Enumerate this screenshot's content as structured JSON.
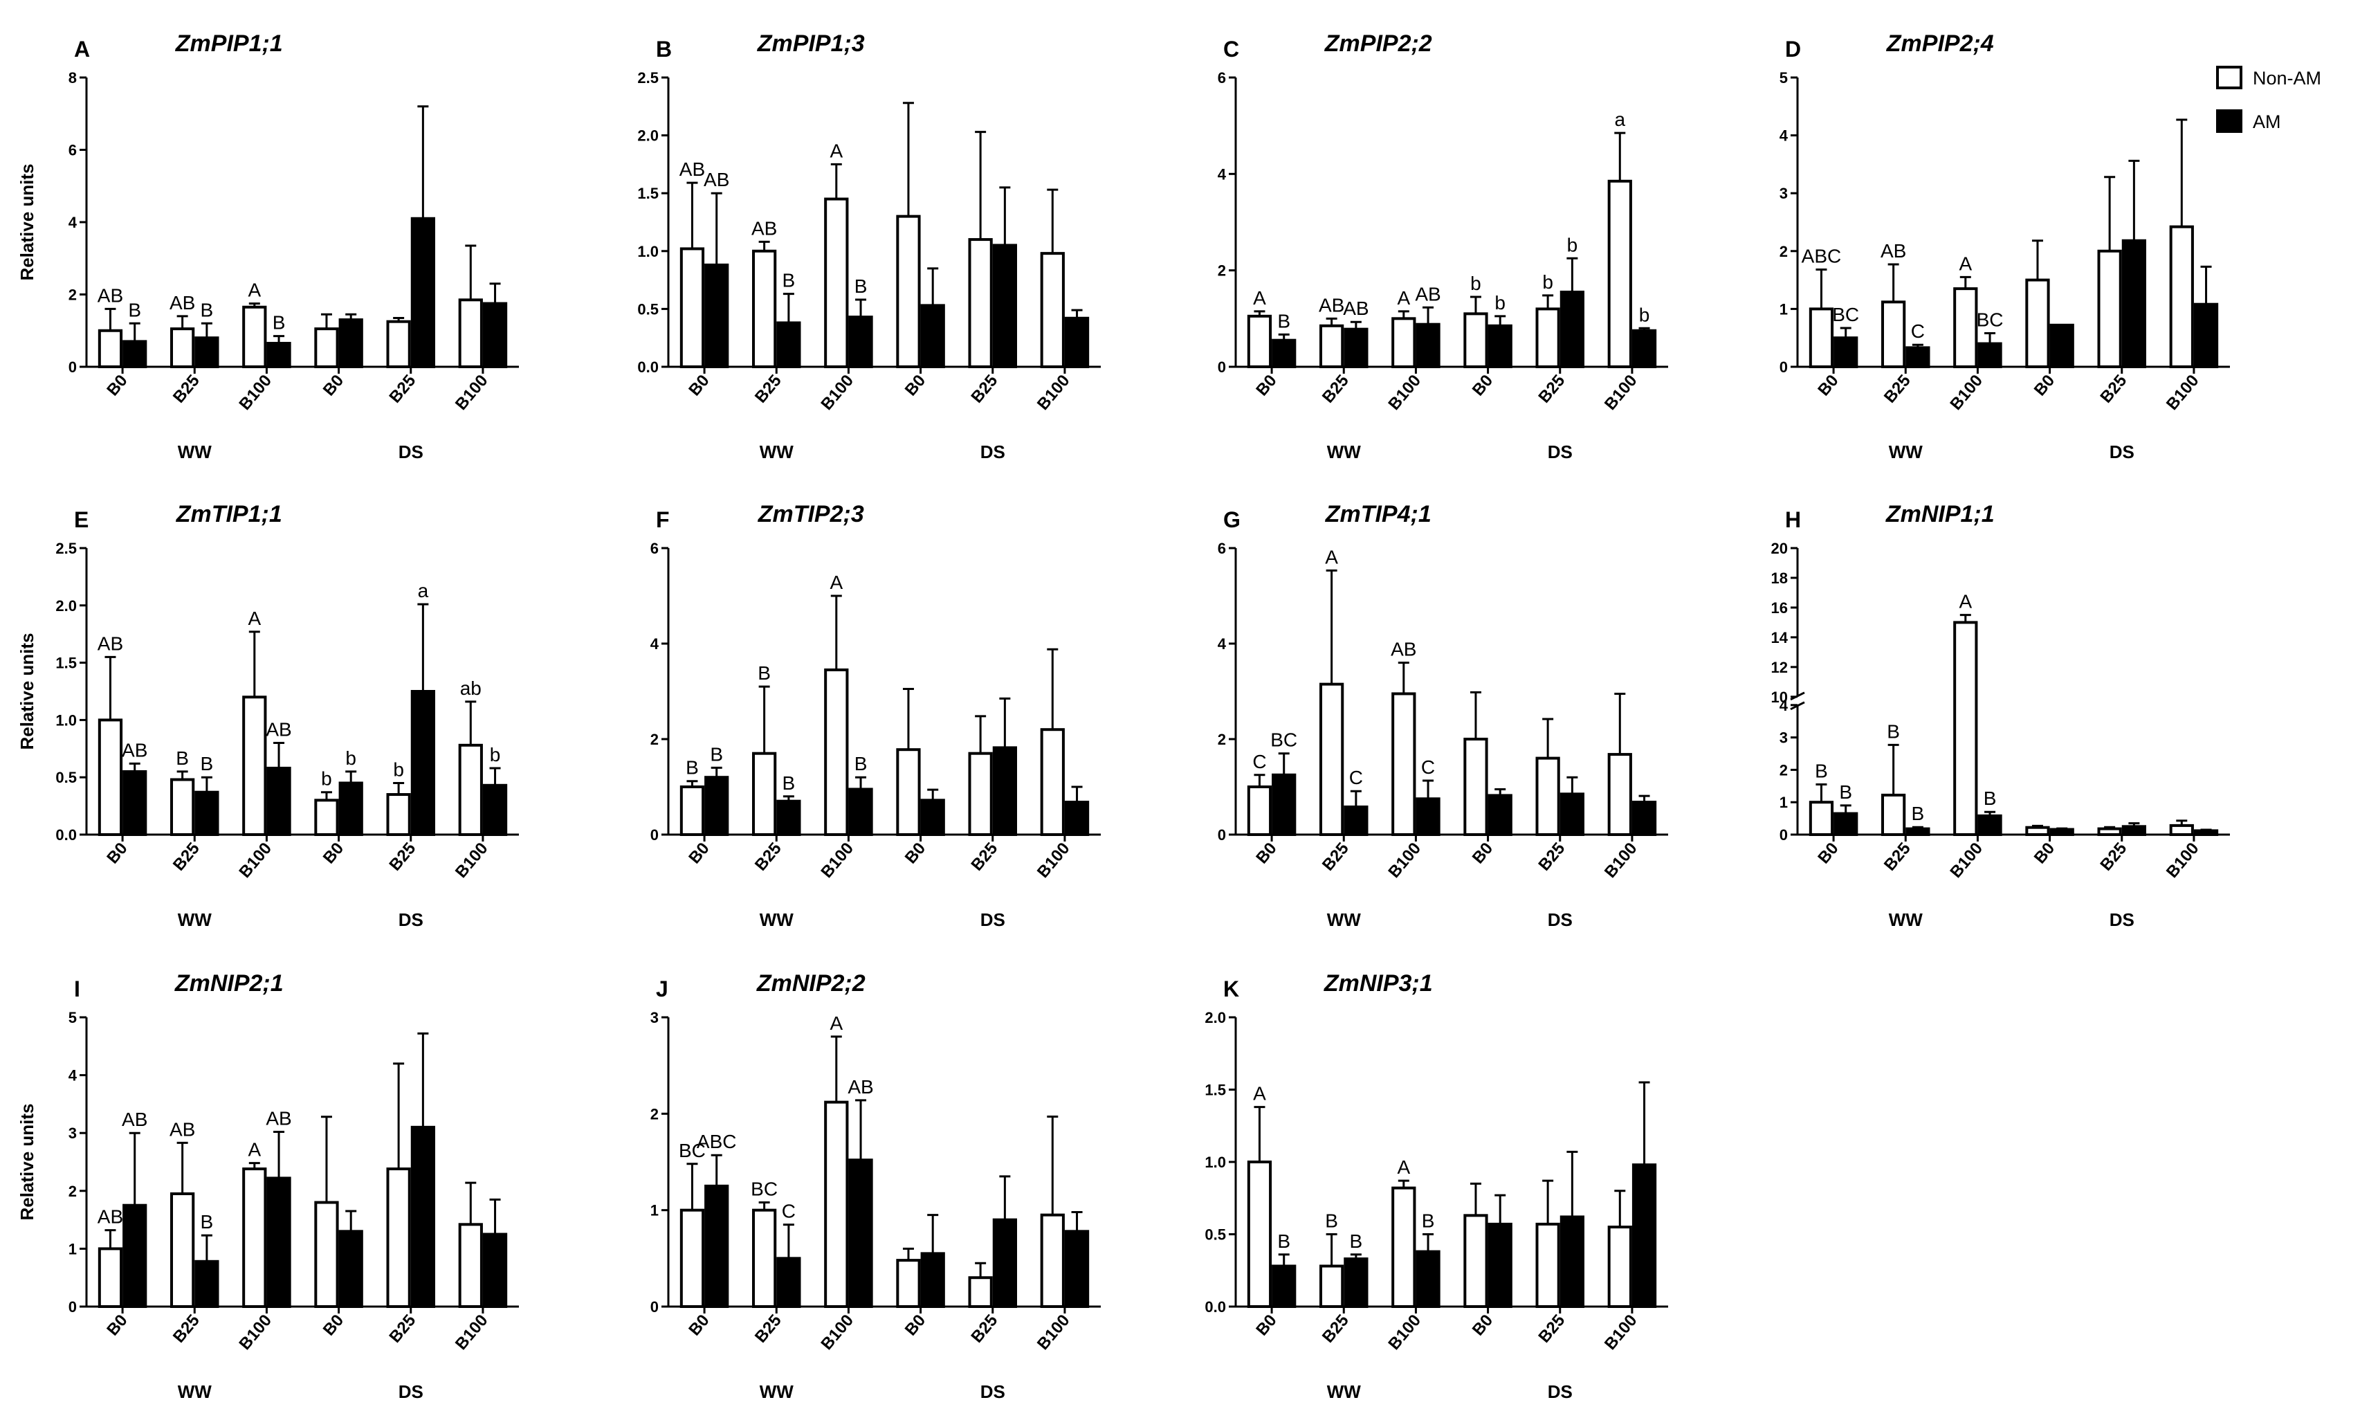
{
  "figure": {
    "y_axis_label": "Relative units",
    "group_labels": [
      "WW",
      "DS"
    ],
    "category_labels": [
      "B0",
      "B25",
      "B100",
      "B0",
      "B25",
      "B100"
    ],
    "legend": [
      {
        "label": "Non-AM",
        "fill": "#ffffff"
      },
      {
        "label": "AM",
        "fill": "#000000"
      }
    ]
  },
  "chart_data": [
    {
      "type": "bar",
      "letter": "A",
      "title": "ZmPIP1;1",
      "ylabel": "Relative units",
      "ylim": [
        0,
        8
      ],
      "yticks": [
        0,
        2,
        4,
        6,
        8
      ],
      "categories": [
        "B0",
        "B25",
        "B100",
        "B0",
        "B25",
        "B100"
      ],
      "groups": [
        "WW",
        "DS"
      ],
      "series": [
        {
          "name": "Non-AM",
          "values": [
            1.0,
            1.05,
            1.65,
            1.05,
            1.25,
            1.85
          ],
          "errors": [
            0.6,
            0.35,
            0.1,
            0.4,
            0.1,
            1.5
          ],
          "labels": [
            "AB",
            "AB",
            "A",
            "",
            "",
            ""
          ]
        },
        {
          "name": "AM",
          "values": [
            0.7,
            0.8,
            0.65,
            1.3,
            4.1,
            1.75
          ],
          "errors": [
            0.5,
            0.4,
            0.2,
            0.15,
            3.1,
            0.55
          ],
          "labels": [
            "B",
            "B",
            "B",
            "",
            "",
            ""
          ]
        }
      ]
    },
    {
      "type": "bar",
      "letter": "B",
      "title": "ZmPIP1;3",
      "ylabel": "Relative units",
      "ylim": [
        0,
        2.5
      ],
      "yticks": [
        0,
        0.5,
        1.0,
        1.5,
        2.0,
        2.5
      ],
      "categories": [
        "B0",
        "B25",
        "B100",
        "B0",
        "B25",
        "B100"
      ],
      "groups": [
        "WW",
        "DS"
      ],
      "series": [
        {
          "name": "Non-AM",
          "values": [
            1.02,
            1.0,
            1.45,
            1.3,
            1.1,
            0.98
          ],
          "errors": [
            0.57,
            0.08,
            0.3,
            0.98,
            0.93,
            0.55
          ],
          "labels": [
            "AB",
            "AB",
            "A",
            "",
            "",
            ""
          ]
        },
        {
          "name": "AM",
          "values": [
            0.88,
            0.38,
            0.43,
            0.53,
            1.05,
            0.42
          ],
          "errors": [
            0.62,
            0.25,
            0.15,
            0.32,
            0.5,
            0.07
          ],
          "labels": [
            "AB",
            "B",
            "B",
            "",
            "",
            ""
          ]
        }
      ]
    },
    {
      "type": "bar",
      "letter": "C",
      "title": "ZmPIP2;2",
      "ylabel": "Relative units",
      "ylim": [
        0,
        6
      ],
      "yticks": [
        0,
        2,
        4,
        6
      ],
      "categories": [
        "B0",
        "B25",
        "B100",
        "B0",
        "B25",
        "B100"
      ],
      "groups": [
        "WW",
        "DS"
      ],
      "series": [
        {
          "name": "Non-AM",
          "values": [
            1.05,
            0.85,
            1.0,
            1.1,
            1.2,
            3.85
          ],
          "errors": [
            0.1,
            0.15,
            0.15,
            0.35,
            0.28,
            1.0
          ],
          "labels": [
            "A",
            "AB",
            "A",
            "b",
            "b",
            "a"
          ]
        },
        {
          "name": "AM",
          "values": [
            0.55,
            0.78,
            0.88,
            0.85,
            1.55,
            0.75
          ],
          "errors": [
            0.12,
            0.15,
            0.35,
            0.2,
            0.7,
            0.05
          ],
          "labels": [
            "B",
            "AB",
            "AB",
            "b",
            "b",
            "b"
          ]
        }
      ]
    },
    {
      "type": "bar",
      "letter": "D",
      "title": "ZmPIP2;4",
      "ylabel": "Relative units",
      "ylim": [
        0,
        5
      ],
      "yticks": [
        0,
        1,
        2,
        3,
        4,
        5
      ],
      "categories": [
        "B0",
        "B25",
        "B100",
        "B0",
        "B25",
        "B100"
      ],
      "groups": [
        "WW",
        "DS"
      ],
      "series": [
        {
          "name": "Non-AM",
          "values": [
            1.0,
            1.12,
            1.35,
            1.5,
            2.0,
            2.42
          ],
          "errors": [
            0.68,
            0.65,
            0.2,
            0.68,
            1.28,
            1.85
          ],
          "labels": [
            "ABC",
            "AB",
            "A",
            "",
            "",
            ""
          ]
        },
        {
          "name": "AM",
          "values": [
            0.5,
            0.33,
            0.4,
            0.72,
            2.18,
            1.08
          ],
          "errors": [
            0.17,
            0.05,
            0.18,
            0.0,
            1.38,
            0.65
          ],
          "labels": [
            "BC",
            "C",
            "BC",
            "",
            "",
            ""
          ]
        }
      ]
    },
    {
      "type": "bar",
      "letter": "E",
      "title": "ZmTIP1;1",
      "ylabel": "Relative units",
      "ylim": [
        0,
        2.5
      ],
      "yticks": [
        0,
        0.5,
        1.0,
        1.5,
        2.0,
        2.5
      ],
      "categories": [
        "B0",
        "B25",
        "B100",
        "B0",
        "B25",
        "B100"
      ],
      "groups": [
        "WW",
        "DS"
      ],
      "series": [
        {
          "name": "Non-AM",
          "values": [
            1.0,
            0.48,
            1.2,
            0.3,
            0.35,
            0.78
          ],
          "errors": [
            0.55,
            0.07,
            0.57,
            0.07,
            0.1,
            0.38
          ],
          "labels": [
            "AB",
            "B",
            "A",
            "b",
            "b",
            "ab"
          ]
        },
        {
          "name": "AM",
          "values": [
            0.55,
            0.37,
            0.58,
            0.45,
            1.25,
            0.43
          ],
          "errors": [
            0.07,
            0.13,
            0.22,
            0.1,
            0.76,
            0.15
          ],
          "labels": [
            "AB",
            "B",
            "AB",
            "b",
            "a",
            "b"
          ]
        }
      ]
    },
    {
      "type": "bar",
      "letter": "F",
      "title": "ZmTIP2;3",
      "ylabel": "Relative units",
      "ylim": [
        0,
        6
      ],
      "yticks": [
        0,
        2,
        4,
        6
      ],
      "categories": [
        "B0",
        "B25",
        "B100",
        "B0",
        "B25",
        "B100"
      ],
      "groups": [
        "WW",
        "DS"
      ],
      "series": [
        {
          "name": "Non-AM",
          "values": [
            1.0,
            1.7,
            3.45,
            1.78,
            1.7,
            2.2
          ],
          "errors": [
            0.12,
            1.4,
            1.55,
            1.27,
            0.78,
            1.68
          ],
          "labels": [
            "B",
            "B",
            "A",
            "",
            "",
            ""
          ]
        },
        {
          "name": "AM",
          "values": [
            1.2,
            0.7,
            0.95,
            0.72,
            1.82,
            0.68
          ],
          "errors": [
            0.2,
            0.1,
            0.25,
            0.22,
            1.03,
            0.32
          ],
          "labels": [
            "B",
            "B",
            "B",
            "",
            "",
            ""
          ]
        }
      ]
    },
    {
      "type": "bar",
      "letter": "G",
      "title": "ZmTIP4;1",
      "ylabel": "Relative units",
      "ylim": [
        0,
        6
      ],
      "yticks": [
        0,
        2,
        4,
        6
      ],
      "categories": [
        "B0",
        "B25",
        "B100",
        "B0",
        "B25",
        "B100"
      ],
      "groups": [
        "WW",
        "DS"
      ],
      "series": [
        {
          "name": "Non-AM",
          "values": [
            1.0,
            3.15,
            2.95,
            2.0,
            1.6,
            1.68
          ],
          "errors": [
            0.25,
            2.38,
            0.65,
            0.98,
            0.82,
            1.27
          ],
          "labels": [
            "C",
            "A",
            "AB",
            "",
            "",
            ""
          ]
        },
        {
          "name": "AM",
          "values": [
            1.25,
            0.58,
            0.75,
            0.82,
            0.85,
            0.68
          ],
          "errors": [
            0.45,
            0.33,
            0.38,
            0.13,
            0.35,
            0.13
          ],
          "labels": [
            "BC",
            "C",
            "C",
            "",
            "",
            ""
          ]
        }
      ]
    },
    {
      "type": "bar",
      "letter": "H",
      "title": "ZmNIP1;1",
      "ylabel": "Relative units",
      "ylim": [
        0,
        20
      ],
      "axis_break": [
        4,
        10
      ],
      "yticks": [
        0,
        1,
        2,
        3,
        4,
        10,
        12,
        14,
        16,
        18,
        20
      ],
      "categories": [
        "B0",
        "B25",
        "B100",
        "B0",
        "B25",
        "B100"
      ],
      "groups": [
        "WW",
        "DS"
      ],
      "series": [
        {
          "name": "Non-AM",
          "values": [
            1.0,
            1.22,
            15.0,
            0.22,
            0.18,
            0.28
          ],
          "errors": [
            0.55,
            1.55,
            0.5,
            0.05,
            0.05,
            0.15
          ],
          "labels": [
            "B",
            "B",
            "A",
            "",
            "",
            ""
          ]
        },
        {
          "name": "AM",
          "values": [
            0.65,
            0.18,
            0.58,
            0.16,
            0.25,
            0.12
          ],
          "errors": [
            0.25,
            0.05,
            0.12,
            0.03,
            0.1,
            0.03
          ],
          "labels": [
            "B",
            "B",
            "B",
            "",
            "",
            ""
          ]
        }
      ]
    },
    {
      "type": "bar",
      "letter": "I",
      "title": "ZmNIP2;1",
      "ylabel": "Relative units",
      "ylim": [
        0,
        5
      ],
      "yticks": [
        0,
        1,
        2,
        3,
        4,
        5
      ],
      "categories": [
        "B0",
        "B25",
        "B100",
        "B0",
        "B25",
        "B100"
      ],
      "groups": [
        "WW",
        "DS"
      ],
      "series": [
        {
          "name": "Non-AM",
          "values": [
            1.0,
            1.95,
            2.38,
            1.8,
            2.38,
            1.42
          ],
          "errors": [
            0.32,
            0.88,
            0.1,
            1.48,
            1.82,
            0.72
          ],
          "labels": [
            "AB",
            "AB",
            "A",
            "",
            "",
            ""
          ]
        },
        {
          "name": "AM",
          "values": [
            1.75,
            0.78,
            2.22,
            1.3,
            3.1,
            1.25
          ],
          "errors": [
            1.25,
            0.45,
            0.8,
            0.35,
            1.62,
            0.6
          ],
          "labels": [
            "AB",
            "B",
            "AB",
            "",
            "",
            ""
          ]
        }
      ]
    },
    {
      "type": "bar",
      "letter": "J",
      "title": "ZmNIP2;2",
      "ylabel": "Relative units",
      "ylim": [
        0,
        3
      ],
      "yticks": [
        0,
        1,
        2,
        3
      ],
      "categories": [
        "B0",
        "B25",
        "B100",
        "B0",
        "B25",
        "B100"
      ],
      "groups": [
        "WW",
        "DS"
      ],
      "series": [
        {
          "name": "Non-AM",
          "values": [
            1.0,
            1.0,
            2.12,
            0.48,
            0.3,
            0.95
          ],
          "errors": [
            0.48,
            0.08,
            0.68,
            0.12,
            0.15,
            1.02
          ],
          "labels": [
            "BC",
            "BC",
            "A",
            "",
            "",
            ""
          ]
        },
        {
          "name": "AM",
          "values": [
            1.25,
            0.5,
            1.52,
            0.55,
            0.9,
            0.78
          ],
          "errors": [
            0.32,
            0.35,
            0.62,
            0.4,
            0.45,
            0.2
          ],
          "labels": [
            "ABC",
            "C",
            "AB",
            "",
            "",
            ""
          ]
        }
      ]
    },
    {
      "type": "bar",
      "letter": "K",
      "title": "ZmNIP3;1",
      "ylabel": "Relative units",
      "ylim": [
        0,
        2.0
      ],
      "yticks": [
        0,
        0.5,
        1.0,
        1.5,
        2.0
      ],
      "categories": [
        "B0",
        "B25",
        "B100",
        "B0",
        "B25",
        "B100"
      ],
      "groups": [
        "WW",
        "DS"
      ],
      "series": [
        {
          "name": "Non-AM",
          "values": [
            1.0,
            0.28,
            0.82,
            0.63,
            0.57,
            0.55
          ],
          "errors": [
            0.38,
            0.22,
            0.05,
            0.22,
            0.3,
            0.25
          ],
          "labels": [
            "A",
            "B",
            "A",
            "",
            "",
            ""
          ]
        },
        {
          "name": "AM",
          "values": [
            0.28,
            0.33,
            0.38,
            0.57,
            0.62,
            0.98
          ],
          "errors": [
            0.08,
            0.03,
            0.12,
            0.2,
            0.45,
            0.57
          ],
          "labels": [
            "B",
            "B",
            "B",
            "",
            "",
            ""
          ]
        }
      ]
    }
  ]
}
